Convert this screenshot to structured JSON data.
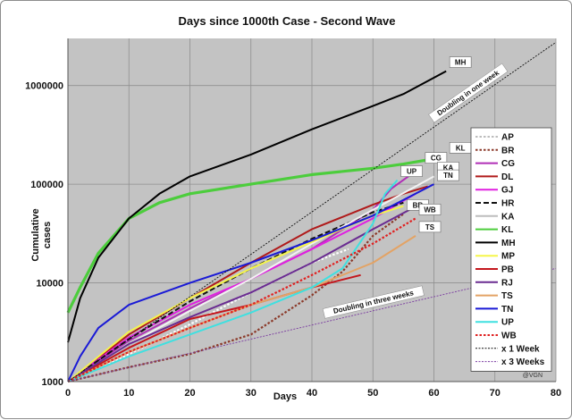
{
  "chart_data": {
    "type": "line",
    "title": "Days since 1000th Case - Second Wave",
    "xlabel": "Days",
    "ylabel": "Cumulative cases",
    "xlim": [
      0,
      80
    ],
    "ylim": [
      1000,
      3000000
    ],
    "yscale": "log",
    "x_ticks": [
      0,
      10,
      20,
      30,
      40,
      50,
      60,
      70,
      80
    ],
    "y_ticks": [
      1000,
      10000,
      100000,
      1000000
    ],
    "y_tick_labels": [
      "1000",
      "10000",
      "100000",
      "1000000"
    ],
    "grid": true,
    "legend_position": "right",
    "credit": "@VGN",
    "series": [
      {
        "name": "AP",
        "color": "#ffffff",
        "dash": "dotted",
        "tag": "",
        "points": [
          [
            0,
            1000
          ],
          [
            10,
            1900
          ],
          [
            20,
            3800
          ],
          [
            30,
            8000
          ],
          [
            40,
            16000
          ],
          [
            46,
            22000
          ]
        ]
      },
      {
        "name": "BR",
        "color": "#8b3a2a",
        "dash": "dotted",
        "tag": "BR",
        "points": [
          [
            0,
            1000
          ],
          [
            10,
            1400
          ],
          [
            20,
            1900
          ],
          [
            30,
            3000
          ],
          [
            40,
            7500
          ],
          [
            45,
            13000
          ],
          [
            50,
            30000
          ],
          [
            55,
            50000
          ]
        ]
      },
      {
        "name": "CG",
        "color": "#b02fb6",
        "dash": "solid",
        "tag": "CG",
        "points": [
          [
            0,
            1000
          ],
          [
            10,
            2600
          ],
          [
            20,
            5500
          ],
          [
            30,
            11000
          ],
          [
            40,
            22000
          ],
          [
            50,
            55000
          ],
          [
            53,
            90000
          ],
          [
            58,
            150000
          ]
        ]
      },
      {
        "name": "DL",
        "color": "#b01a1a",
        "dash": "solid",
        "tag": "",
        "points": [
          [
            0,
            1000
          ],
          [
            10,
            3000
          ],
          [
            20,
            7000
          ],
          [
            30,
            16000
          ],
          [
            40,
            35000
          ],
          [
            50,
            62000
          ],
          [
            55,
            80000
          ],
          [
            59,
            95000
          ]
        ]
      },
      {
        "name": "GJ",
        "color": "#e020e0",
        "dash": "solid",
        "tag": "",
        "points": [
          [
            0,
            1000
          ],
          [
            10,
            2800
          ],
          [
            20,
            6000
          ],
          [
            30,
            11000
          ],
          [
            40,
            22000
          ],
          [
            50,
            45000
          ],
          [
            57,
            80000
          ]
        ]
      },
      {
        "name": "HR",
        "color": "#111111",
        "dash": "dashed",
        "tag": "",
        "points": [
          [
            0,
            1000
          ],
          [
            10,
            2700
          ],
          [
            20,
            6500
          ],
          [
            30,
            14000
          ],
          [
            40,
            28000
          ],
          [
            50,
            52000
          ],
          [
            55,
            65000
          ]
        ]
      },
      {
        "name": "KA",
        "color": "#f2f2f2",
        "dash": "solid",
        "tag": "KA",
        "points": [
          [
            0,
            1000
          ],
          [
            10,
            2400
          ],
          [
            20,
            5200
          ],
          [
            30,
            11000
          ],
          [
            40,
            25000
          ],
          [
            50,
            55000
          ],
          [
            60,
            120000
          ]
        ]
      },
      {
        "name": "KL",
        "color": "#4ccd3c",
        "dash": "solid",
        "tag": "KL",
        "points": [
          [
            0,
            5000
          ],
          [
            2,
            9000
          ],
          [
            5,
            20000
          ],
          [
            10,
            45000
          ],
          [
            15,
            65000
          ],
          [
            20,
            80000
          ],
          [
            30,
            100000
          ],
          [
            40,
            125000
          ],
          [
            50,
            145000
          ],
          [
            55,
            160000
          ],
          [
            62,
            190000
          ]
        ]
      },
      {
        "name": "MH",
        "color": "#000000",
        "dash": "solid",
        "tag": "MH",
        "points": [
          [
            0,
            2500
          ],
          [
            2,
            7000
          ],
          [
            5,
            18000
          ],
          [
            10,
            45000
          ],
          [
            15,
            80000
          ],
          [
            20,
            120000
          ],
          [
            30,
            200000
          ],
          [
            40,
            360000
          ],
          [
            50,
            620000
          ],
          [
            55,
            820000
          ],
          [
            62,
            1400000
          ]
        ]
      },
      {
        "name": "MP",
        "color": "#f5f54a",
        "dash": "solid",
        "tag": "",
        "points": [
          [
            0,
            1000
          ],
          [
            10,
            3200
          ],
          [
            20,
            7000
          ],
          [
            30,
            14000
          ],
          [
            40,
            26000
          ],
          [
            50,
            48000
          ],
          [
            55,
            60000
          ]
        ]
      },
      {
        "name": "PB",
        "color": "#c4161c",
        "dash": "solid",
        "tag": "",
        "points": [
          [
            0,
            1000
          ],
          [
            10,
            2200
          ],
          [
            20,
            4300
          ],
          [
            30,
            6000
          ],
          [
            40,
            9000
          ],
          [
            48,
            12000
          ]
        ]
      },
      {
        "name": "RJ",
        "color": "#6a2c91",
        "dash": "solid",
        "tag": "",
        "points": [
          [
            0,
            1000
          ],
          [
            10,
            2400
          ],
          [
            20,
            4500
          ],
          [
            30,
            8000
          ],
          [
            40,
            16000
          ],
          [
            50,
            35000
          ],
          [
            56,
            55000
          ]
        ]
      },
      {
        "name": "TS",
        "color": "#e3a365",
        "dash": "solid",
        "tag": "TS",
        "points": [
          [
            0,
            1000
          ],
          [
            10,
            2000
          ],
          [
            20,
            3500
          ],
          [
            30,
            6000
          ],
          [
            40,
            9000
          ],
          [
            50,
            16000
          ],
          [
            57,
            30000
          ]
        ]
      },
      {
        "name": "TN",
        "color": "#1a1ad6",
        "dash": "solid",
        "tag": "TN",
        "points": [
          [
            0,
            1000
          ],
          [
            2,
            1800
          ],
          [
            5,
            3500
          ],
          [
            10,
            6000
          ],
          [
            20,
            10000
          ],
          [
            30,
            16000
          ],
          [
            40,
            27000
          ],
          [
            50,
            48000
          ],
          [
            60,
            100000
          ]
        ]
      },
      {
        "name": "UP",
        "color": "#3fe0e0",
        "dash": "solid",
        "tag": "UP",
        "points": [
          [
            0,
            1000
          ],
          [
            10,
            1800
          ],
          [
            20,
            3000
          ],
          [
            30,
            5000
          ],
          [
            40,
            9000
          ],
          [
            45,
            14000
          ],
          [
            50,
            40000
          ],
          [
            52,
            80000
          ],
          [
            54,
            110000
          ]
        ]
      },
      {
        "name": "WB",
        "color": "#e02020",
        "dash": "dotted",
        "tag": "WB",
        "points": [
          [
            0,
            1000
          ],
          [
            10,
            2000
          ],
          [
            20,
            3500
          ],
          [
            30,
            6000
          ],
          [
            40,
            12000
          ],
          [
            50,
            25000
          ],
          [
            57,
            45000
          ]
        ]
      },
      {
        "name": "x 1 Week",
        "color": "#111111",
        "dash": "fine",
        "tag": "",
        "annotation": "Doubling in one week",
        "points": [
          [
            0,
            1000
          ],
          [
            80,
            2740000
          ]
        ]
      },
      {
        "name": "x 3 Weeks",
        "color": "#7a3aa0",
        "dash": "fine",
        "tag": "",
        "annotation": "Doubling in three weeks",
        "points": [
          [
            0,
            1000
          ],
          [
            80,
            14000
          ]
        ]
      }
    ]
  }
}
